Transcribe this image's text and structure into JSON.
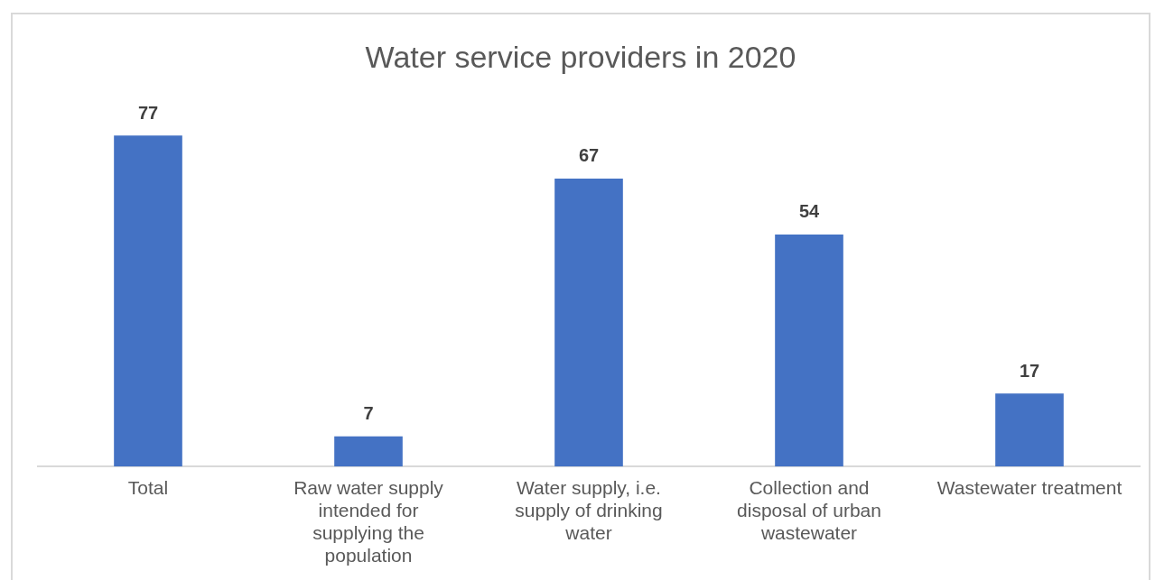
{
  "chart_data": {
    "type": "bar",
    "title": "Water service providers in 2020",
    "categories": [
      "Total",
      "Raw water supply intended for supplying the population",
      "Water supply, i.e. supply of drinking water",
      "Collection and disposal of urban wastewater",
      "Wastewater treatment"
    ],
    "values": [
      77,
      7,
      67,
      54,
      17
    ],
    "color": "#4472c4",
    "data_labels": true
  }
}
